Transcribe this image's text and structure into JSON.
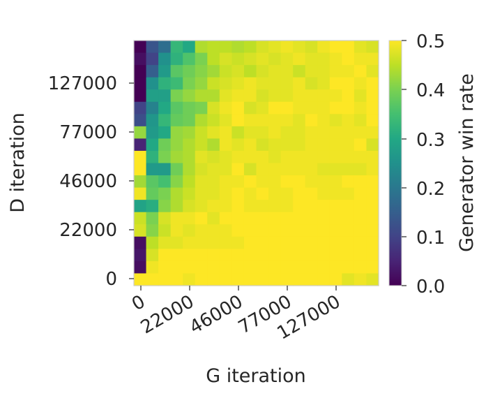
{
  "chart_data": {
    "type": "heatmap",
    "xlabel": "G iteration",
    "ylabel": "D iteration",
    "x_tick_labels": [
      "0",
      "22000",
      "46000",
      "77000",
      "127000"
    ],
    "y_tick_labels": [
      "0",
      "22000",
      "46000",
      "77000",
      "127000"
    ],
    "colorbar": {
      "label": "Generator win rate",
      "range": [
        0.0,
        0.5
      ],
      "tick_labels": [
        "0.0",
        "0.1",
        "0.2",
        "0.3",
        "0.4",
        "0.5"
      ],
      "colormap": "viridis"
    },
    "grid_size": [
      20,
      20
    ],
    "row_order": "top-to-bottom",
    "values": [
      [
        0.0,
        0.13,
        0.18,
        0.33,
        0.3,
        0.44,
        0.45,
        0.45,
        0.44,
        0.45,
        0.47,
        0.48,
        0.49,
        0.48,
        0.47,
        0.49,
        0.5,
        0.5,
        0.48,
        0.47
      ],
      [
        0.02,
        0.1,
        0.25,
        0.32,
        0.36,
        0.4,
        0.45,
        0.47,
        0.46,
        0.47,
        0.48,
        0.47,
        0.48,
        0.49,
        0.48,
        0.48,
        0.49,
        0.5,
        0.49,
        0.49
      ],
      [
        0.0,
        0.15,
        0.27,
        0.37,
        0.39,
        0.41,
        0.43,
        0.46,
        0.47,
        0.45,
        0.47,
        0.48,
        0.48,
        0.46,
        0.48,
        0.48,
        0.49,
        0.49,
        0.5,
        0.48
      ],
      [
        0.0,
        0.25,
        0.32,
        0.34,
        0.4,
        0.42,
        0.46,
        0.47,
        0.48,
        0.49,
        0.48,
        0.48,
        0.48,
        0.49,
        0.47,
        0.48,
        0.5,
        0.5,
        0.49,
        0.5
      ],
      [
        0.0,
        0.28,
        0.28,
        0.4,
        0.42,
        0.44,
        0.44,
        0.48,
        0.49,
        0.49,
        0.47,
        0.48,
        0.48,
        0.49,
        0.49,
        0.49,
        0.49,
        0.5,
        0.48,
        0.5
      ],
      [
        0.1,
        0.22,
        0.3,
        0.37,
        0.39,
        0.4,
        0.47,
        0.49,
        0.5,
        0.47,
        0.48,
        0.5,
        0.5,
        0.49,
        0.49,
        0.49,
        0.5,
        0.5,
        0.49,
        0.5
      ],
      [
        0.12,
        0.26,
        0.33,
        0.38,
        0.39,
        0.44,
        0.46,
        0.48,
        0.5,
        0.49,
        0.49,
        0.49,
        0.49,
        0.48,
        0.5,
        0.49,
        0.48,
        0.49,
        0.48,
        0.5
      ],
      [
        0.42,
        0.27,
        0.3,
        0.42,
        0.43,
        0.46,
        0.48,
        0.49,
        0.46,
        0.48,
        0.48,
        0.49,
        0.48,
        0.48,
        0.49,
        0.49,
        0.49,
        0.49,
        0.49,
        0.49
      ],
      [
        0.05,
        0.3,
        0.39,
        0.42,
        0.44,
        0.46,
        0.44,
        0.49,
        0.48,
        0.49,
        0.47,
        0.48,
        0.48,
        0.48,
        0.49,
        0.49,
        0.49,
        0.49,
        0.5,
        0.47
      ],
      [
        0.5,
        0.32,
        0.4,
        0.43,
        0.44,
        0.48,
        0.47,
        0.48,
        0.49,
        0.49,
        0.49,
        0.48,
        0.49,
        0.49,
        0.49,
        0.49,
        0.49,
        0.49,
        0.49,
        0.49
      ],
      [
        0.5,
        0.27,
        0.27,
        0.39,
        0.44,
        0.47,
        0.48,
        0.48,
        0.5,
        0.47,
        0.49,
        0.49,
        0.49,
        0.49,
        0.49,
        0.48,
        0.48,
        0.48,
        0.48,
        0.49
      ],
      [
        0.43,
        0.37,
        0.35,
        0.41,
        0.45,
        0.48,
        0.48,
        0.49,
        0.49,
        0.5,
        0.49,
        0.49,
        0.5,
        0.5,
        0.49,
        0.49,
        0.49,
        0.5,
        0.5,
        0.5
      ],
      [
        0.49,
        0.38,
        0.4,
        0.44,
        0.46,
        0.48,
        0.48,
        0.49,
        0.5,
        0.49,
        0.5,
        0.49,
        0.49,
        0.5,
        0.5,
        0.49,
        0.49,
        0.49,
        0.5,
        0.5
      ],
      [
        0.29,
        0.31,
        0.41,
        0.44,
        0.47,
        0.48,
        0.49,
        0.49,
        0.5,
        0.49,
        0.49,
        0.49,
        0.49,
        0.5,
        0.5,
        0.5,
        0.5,
        0.5,
        0.5,
        0.5
      ],
      [
        0.46,
        0.4,
        0.47,
        0.49,
        0.49,
        0.5,
        0.48,
        0.5,
        0.5,
        0.5,
        0.5,
        0.5,
        0.5,
        0.5,
        0.5,
        0.5,
        0.5,
        0.5,
        0.5,
        0.5
      ],
      [
        0.47,
        0.41,
        0.46,
        0.49,
        0.48,
        0.49,
        0.49,
        0.49,
        0.5,
        0.5,
        0.5,
        0.5,
        0.5,
        0.5,
        0.5,
        0.5,
        0.5,
        0.5,
        0.5,
        0.5
      ],
      [
        0.02,
        0.45,
        0.48,
        0.48,
        0.49,
        0.49,
        0.49,
        0.49,
        0.49,
        0.5,
        0.5,
        0.5,
        0.5,
        0.5,
        0.5,
        0.5,
        0.5,
        0.5,
        0.5,
        0.5
      ],
      [
        0.03,
        0.47,
        0.5,
        0.5,
        0.5,
        0.5,
        0.5,
        0.5,
        0.5,
        0.5,
        0.5,
        0.5,
        0.5,
        0.5,
        0.5,
        0.5,
        0.5,
        0.5,
        0.5,
        0.5
      ],
      [
        0.02,
        0.49,
        0.5,
        0.5,
        0.5,
        0.5,
        0.5,
        0.5,
        0.5,
        0.5,
        0.5,
        0.5,
        0.5,
        0.5,
        0.5,
        0.5,
        0.5,
        0.5,
        0.5,
        0.5
      ],
      [
        0.5,
        0.5,
        0.5,
        0.5,
        0.49,
        0.5,
        0.5,
        0.5,
        0.5,
        0.5,
        0.5,
        0.5,
        0.5,
        0.5,
        0.5,
        0.5,
        0.5,
        0.48,
        0.49,
        0.48
      ]
    ]
  }
}
